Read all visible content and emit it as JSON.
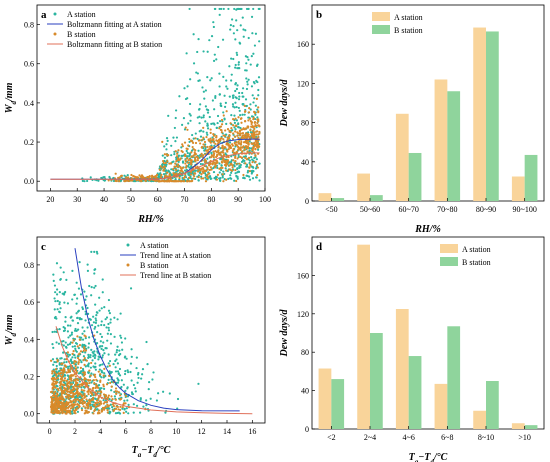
{
  "colors": {
    "a_station_points": "#2ab5a0",
    "b_station_points": "#d88a2a",
    "a_fit_line": "#2a3fbf",
    "b_fit_line": "#e0705a",
    "a_bar": "#f9d49a",
    "b_bar": "#8fd49c"
  },
  "chart_data": [
    {
      "panel": "a",
      "type": "scatter",
      "xlabel": "RH/%",
      "ylabel": "W_d/mm",
      "ylabel_main": "W",
      "ylabel_sub": "d",
      "ylabel_unit": "/mm",
      "xlim": [
        15,
        100
      ],
      "ylim": [
        -0.05,
        0.9
      ],
      "xticks": [
        "20",
        "30",
        "40",
        "50",
        "60",
        "70",
        "80",
        "90",
        "100"
      ],
      "yticks": [
        "0.0",
        "0.2",
        "0.4",
        "0.6",
        "0.8"
      ],
      "legend": [
        "A station",
        "Boltzmann fitting at A station",
        "B station",
        "Boltzmann fitting at B station"
      ],
      "legend_position": "top-left",
      "series": [
        {
          "name": "A station",
          "kind": "scatter",
          "note_range": {
            "x": [
              25,
              98
            ],
            "y": [
              0,
              0.88
            ]
          }
        },
        {
          "name": "Boltzmann fitting at A station",
          "kind": "line",
          "x": [
            20,
            60,
            65,
            70,
            72,
            75,
            78,
            80,
            83,
            86,
            90,
            95,
            98
          ],
          "y": [
            0.01,
            0.01,
            0.02,
            0.04,
            0.06,
            0.09,
            0.13,
            0.16,
            0.19,
            0.205,
            0.213,
            0.215,
            0.215
          ]
        },
        {
          "name": "B station",
          "kind": "scatter",
          "note_range": {
            "x": [
              38,
              98
            ],
            "y": [
              0,
              0.5
            ]
          }
        },
        {
          "name": "Boltzmann fitting at B station",
          "kind": "line",
          "x": [
            20,
            60,
            65,
            70,
            75,
            80,
            83,
            86,
            90,
            95,
            98
          ],
          "y": [
            0.01,
            0.01,
            0.02,
            0.04,
            0.07,
            0.1,
            0.12,
            0.13,
            0.14,
            0.145,
            0.145
          ]
        }
      ]
    },
    {
      "panel": "b",
      "type": "bar",
      "xlabel": "RH/%",
      "ylabel": "Dew days/d",
      "categories": [
        "<50",
        "50~60",
        "60~70",
        "70~80",
        "80~90",
        "90~100"
      ],
      "ylim": [
        0,
        200
      ],
      "yticks": [
        "0",
        "40",
        "80",
        "120",
        "160"
      ],
      "legend_position": "top-left",
      "series": [
        {
          "name": "A station",
          "values": [
            8,
            28,
            89,
            124,
            177,
            25
          ]
        },
        {
          "name": "B station",
          "values": [
            3,
            6,
            49,
            112,
            173,
            47
          ]
        }
      ]
    },
    {
      "panel": "c",
      "type": "scatter",
      "xlabel": "Ta−Td/°C",
      "xlabel_main1": "T",
      "xlabel_sub1": "a",
      "xlabel_mid": "−",
      "xlabel_main2": "T",
      "xlabel_sub2": "d",
      "xlabel_unit": "/°C",
      "ylabel": "W_d/mm",
      "ylabel_main": "W",
      "ylabel_sub": "d",
      "ylabel_unit": "/mm",
      "xlim": [
        -1,
        17
      ],
      "ylim": [
        -0.05,
        0.95
      ],
      "xticks": [
        "0",
        "2",
        "4",
        "6",
        "8",
        "10",
        "12",
        "14",
        "16"
      ],
      "yticks": [
        "0.0",
        "0.2",
        "0.4",
        "0.6",
        "0.8"
      ],
      "legend": [
        "A station",
        "Trend line at A station",
        "B station",
        "Trend line at B station"
      ],
      "legend_position": "top-right",
      "series": [
        {
          "name": "A station",
          "kind": "scatter",
          "note_range": {
            "x": [
              0,
              13
            ],
            "y": [
              0,
              0.87
            ]
          }
        },
        {
          "name": "Trend line at A station",
          "kind": "line",
          "x": [
            2,
            2.5,
            3,
            3.5,
            4,
            4.5,
            5,
            5.5,
            6,
            7,
            8,
            9,
            10,
            12,
            15
          ],
          "y": [
            0.89,
            0.68,
            0.52,
            0.4,
            0.31,
            0.24,
            0.18,
            0.14,
            0.11,
            0.07,
            0.045,
            0.03,
            0.022,
            0.016,
            0.015
          ]
        },
        {
          "name": "B station",
          "kind": "scatter",
          "note_range": {
            "x": [
              0,
              11
            ],
            "y": [
              0,
              0.42
            ]
          }
        },
        {
          "name": "Trend line at B station",
          "kind": "line",
          "x": [
            0.5,
            1,
            1.5,
            2,
            3,
            4,
            5,
            6,
            7,
            8,
            10,
            12,
            14,
            16
          ],
          "y": [
            0.47,
            0.36,
            0.28,
            0.22,
            0.14,
            0.09,
            0.06,
            0.04,
            0.03,
            0.02,
            0.01,
            0.005,
            0.002,
            0.0
          ]
        }
      ]
    },
    {
      "panel": "d",
      "type": "bar",
      "xlabel": "Ta−Td/°C",
      "xlabel_main1": "T",
      "xlabel_sub1": "a",
      "xlabel_mid": "−",
      "xlabel_main2": "T",
      "xlabel_sub2": "d",
      "xlabel_unit": "/°C",
      "ylabel": "Dew days/d",
      "categories": [
        "<2",
        "2~4",
        "4~6",
        "6~8",
        "8~10",
        ">10"
      ],
      "ylim": [
        0,
        200
      ],
      "yticks": [
        "0",
        "40",
        "80",
        "120",
        "160"
      ],
      "legend_position": "top-right",
      "series": [
        {
          "name": "A station",
          "values": [
            63,
            192,
            125,
            47,
            19,
            6
          ]
        },
        {
          "name": "B station",
          "values": [
            52,
            100,
            76,
            107,
            50,
            4
          ]
        }
      ]
    }
  ]
}
